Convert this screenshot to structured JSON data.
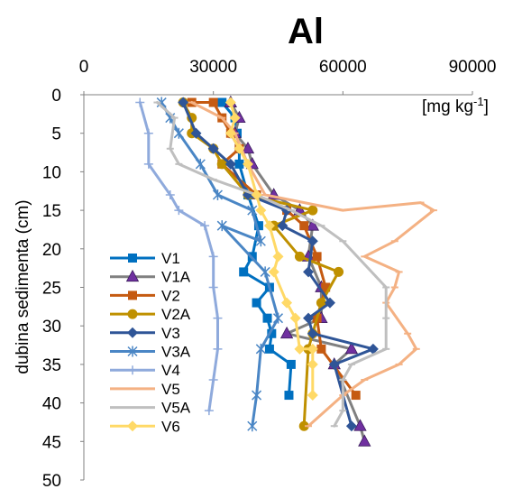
{
  "chart_data": {
    "type": "line",
    "title": "Al",
    "xlabel": "",
    "ylabel": "dubina sedimenta (cm)",
    "unit": "[mg kg-1]",
    "unit_base": "[mg kg",
    "unit_exp": "-1",
    "unit_close": "]",
    "xlim": [
      0,
      90000
    ],
    "ylim": [
      0,
      50
    ],
    "x_axis_position": "top",
    "y_axis_reversed": true,
    "grid": false,
    "legend_position": "bottom-left",
    "x_ticks": [
      0,
      30000,
      60000,
      90000
    ],
    "x_tick_labels": [
      "0",
      "30000",
      "60000",
      "90000"
    ],
    "y_ticks": [
      0,
      5,
      10,
      15,
      20,
      25,
      30,
      35,
      40,
      45,
      50
    ],
    "y_tick_labels": [
      "0",
      "5",
      "10",
      "15",
      "20",
      "25",
      "30",
      "35",
      "40",
      "45",
      "50"
    ],
    "series": [
      {
        "name": "V1",
        "color": "#0070C0",
        "marker": "square",
        "points": [
          [
            32000,
            1
          ],
          [
            35000,
            3
          ],
          [
            35500,
            5
          ],
          [
            36000,
            7
          ],
          [
            36000,
            9
          ],
          [
            38000,
            13
          ],
          [
            40500,
            17
          ],
          [
            39000,
            21
          ],
          [
            37000,
            23
          ],
          [
            43000,
            25
          ],
          [
            40000,
            27
          ],
          [
            42500,
            29
          ],
          [
            43500,
            31
          ],
          [
            43000,
            33
          ],
          [
            48000,
            35
          ],
          [
            47500,
            39
          ]
        ]
      },
      {
        "name": "V1A",
        "color": "#808080",
        "marker": "triangle",
        "points": [
          [
            34000,
            1
          ],
          [
            36000,
            3
          ],
          [
            35000,
            5
          ],
          [
            38000,
            7
          ],
          [
            39000,
            9
          ],
          [
            44000,
            13
          ],
          [
            50000,
            15
          ],
          [
            53000,
            17
          ],
          [
            52000,
            21
          ],
          [
            55000,
            25
          ],
          [
            55000,
            29
          ],
          [
            47000,
            31
          ],
          [
            62000,
            33
          ],
          [
            58000,
            35
          ],
          [
            64000,
            43
          ],
          [
            65000,
            45
          ]
        ]
      },
      {
        "name": "V2",
        "color": "#C55A11",
        "marker": "square",
        "points": [
          [
            25000,
            1
          ],
          [
            30000,
            1
          ],
          [
            32000,
            3
          ],
          [
            34000,
            5
          ],
          [
            36000,
            7
          ],
          [
            32000,
            9
          ],
          [
            40000,
            13
          ],
          [
            47000,
            15
          ],
          [
            51000,
            17
          ],
          [
            54000,
            21
          ],
          [
            56000,
            25
          ],
          [
            54000,
            29
          ],
          [
            55000,
            33
          ],
          [
            63000,
            39
          ]
        ]
      },
      {
        "name": "V2A",
        "color": "#BF9000",
        "marker": "circle",
        "points": [
          [
            23000,
            1
          ],
          [
            25000,
            3
          ],
          [
            25000,
            5
          ],
          [
            30000,
            7
          ],
          [
            32000,
            9
          ],
          [
            38000,
            13
          ],
          [
            53000,
            15
          ],
          [
            44000,
            17
          ],
          [
            50000,
            21
          ],
          [
            59000,
            23
          ],
          [
            55000,
            27
          ],
          [
            53000,
            31
          ],
          [
            52000,
            33
          ],
          [
            51000,
            43
          ]
        ]
      },
      {
        "name": "V3",
        "color": "#2F5597",
        "marker": "diamond",
        "points": [
          [
            23000,
            1
          ],
          [
            26000,
            5
          ],
          [
            30000,
            7
          ],
          [
            34000,
            9
          ],
          [
            38000,
            13
          ],
          [
            47000,
            15
          ],
          [
            46000,
            17
          ],
          [
            53000,
            19
          ],
          [
            52000,
            23
          ],
          [
            57000,
            27
          ],
          [
            52000,
            29
          ],
          [
            53000,
            31
          ],
          [
            67000,
            33
          ],
          [
            58000,
            35
          ],
          [
            62000,
            43
          ]
        ]
      },
      {
        "name": "V3A",
        "color": "#4A86C5",
        "marker": "star",
        "points": [
          [
            18000,
            1
          ],
          [
            20000,
            3
          ],
          [
            22000,
            5
          ],
          [
            27000,
            9
          ],
          [
            31000,
            13
          ],
          [
            39000,
            15
          ],
          [
            41000,
            19
          ],
          [
            32000,
            17
          ],
          [
            42000,
            23
          ],
          [
            45000,
            29
          ],
          [
            41000,
            33
          ],
          [
            40000,
            39
          ],
          [
            39000,
            43
          ]
        ]
      },
      {
        "name": "V4",
        "color": "#8FAADC",
        "marker": "plus",
        "points": [
          [
            13000,
            1
          ],
          [
            15000,
            5
          ],
          [
            15000,
            9
          ],
          [
            20000,
            13
          ],
          [
            22000,
            15
          ],
          [
            28000,
            17
          ],
          [
            30000,
            21
          ],
          [
            30000,
            25
          ],
          [
            31000,
            29
          ],
          [
            31000,
            33
          ],
          [
            30000,
            37
          ],
          [
            29000,
            41
          ]
        ]
      },
      {
        "name": "V5",
        "color": "#F4B183",
        "marker": "dash",
        "points": [
          [
            25000,
            1
          ],
          [
            32000,
            3
          ],
          [
            35000,
            5
          ],
          [
            38000,
            9
          ],
          [
            42000,
            13
          ],
          [
            60000,
            15
          ],
          [
            78000,
            14
          ],
          [
            81000,
            15
          ],
          [
            72000,
            19
          ],
          [
            65000,
            21
          ],
          [
            73000,
            23
          ],
          [
            72000,
            25
          ],
          [
            70000,
            27
          ],
          [
            75000,
            31
          ],
          [
            77000,
            33
          ],
          [
            73000,
            35
          ],
          [
            65000,
            37
          ],
          [
            60000,
            39
          ],
          [
            52000,
            43
          ]
        ]
      },
      {
        "name": "V5A",
        "color": "#BFBFBF",
        "marker": "dash",
        "points": [
          [
            17000,
            1
          ],
          [
            21000,
            3
          ],
          [
            20000,
            7
          ],
          [
            22000,
            9
          ],
          [
            30000,
            11
          ],
          [
            40000,
            13
          ],
          [
            48000,
            15
          ],
          [
            55000,
            17
          ],
          [
            60000,
            19
          ],
          [
            70000,
            25
          ],
          [
            70000,
            29
          ],
          [
            70000,
            33
          ],
          [
            62000,
            35
          ],
          [
            60000,
            37
          ],
          [
            60000,
            41
          ],
          [
            58000,
            43
          ]
        ]
      },
      {
        "name": "V6",
        "color": "#FFD966",
        "marker": "diamond",
        "points": [
          [
            34000,
            1
          ],
          [
            35000,
            3
          ],
          [
            34000,
            5
          ],
          [
            36000,
            7
          ],
          [
            38000,
            9
          ],
          [
            40000,
            13
          ],
          [
            41000,
            15
          ],
          [
            43000,
            17
          ],
          [
            45000,
            21
          ],
          [
            44000,
            23
          ],
          [
            47000,
            27
          ],
          [
            49000,
            29
          ],
          [
            50000,
            33
          ],
          [
            53000,
            33
          ],
          [
            53000,
            35
          ],
          [
            53000,
            39
          ]
        ]
      }
    ]
  }
}
